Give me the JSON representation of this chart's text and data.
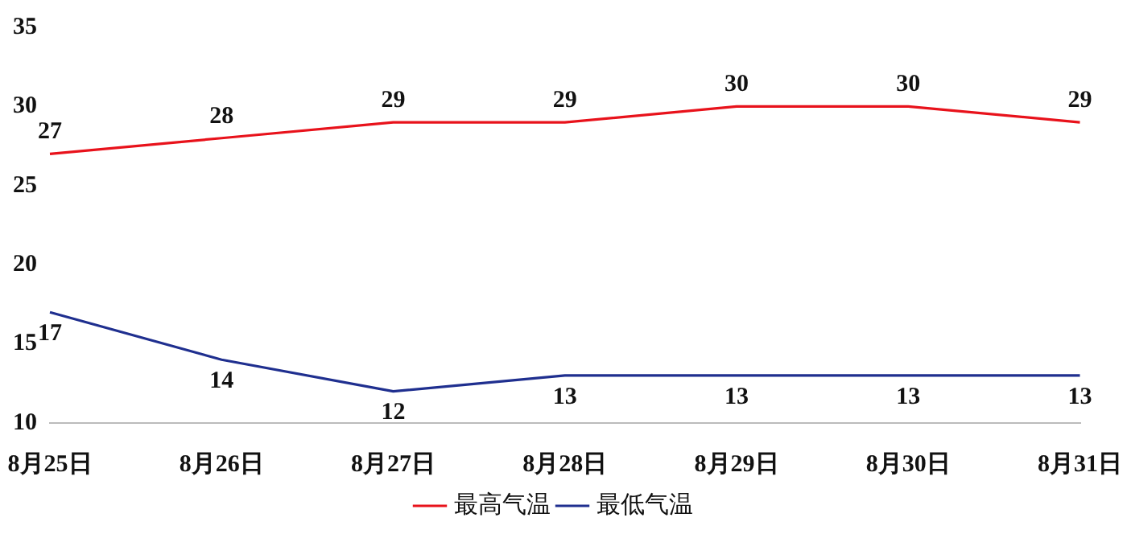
{
  "chart_data": {
    "type": "line",
    "categories": [
      "8月25日",
      "8月26日",
      "8月27日",
      "8月28日",
      "8月29日",
      "8月30日",
      "8月31日"
    ],
    "series": [
      {
        "name": "最高气温",
        "color": "#e8121b",
        "values": [
          27,
          28,
          29,
          29,
          30,
          30,
          29
        ]
      },
      {
        "name": "最低气温",
        "color": "#1f2f8f",
        "values": [
          17,
          14,
          12,
          13,
          13,
          13,
          13
        ]
      }
    ],
    "ylim": [
      10,
      35
    ],
    "yticks": [
      10,
      15,
      20,
      25,
      30,
      35
    ],
    "grid": false,
    "legend": "bottom",
    "data_labels": true,
    "marker": "none",
    "line_style": "solid"
  }
}
